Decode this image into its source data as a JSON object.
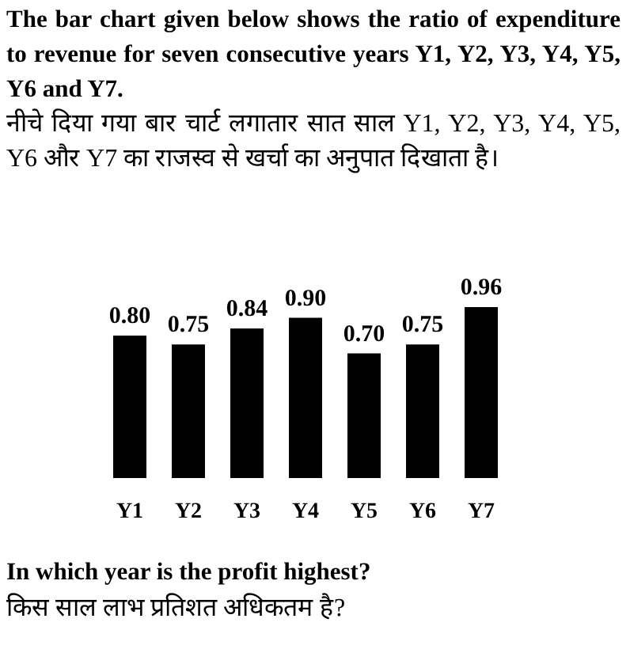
{
  "chart_data": {
    "type": "bar",
    "title": "The bar chart given below shows the ratio of expenditure to revenue for seven consecutive years Y1, Y2, Y3, Y4, Y5, Y6 and Y7.",
    "subtitle": "नीचे दिया गया बार चार्ट लगातार सात साल Y1, Y2, Y3, Y4, Y5, Y6 और Y7 का राजस्व से खर्चा का अनुपात दिखाता है।",
    "categories": [
      "Y1",
      "Y2",
      "Y3",
      "Y4",
      "Y5",
      "Y6",
      "Y7"
    ],
    "values": [
      0.8,
      0.75,
      0.84,
      0.9,
      0.7,
      0.75,
      0.96
    ],
    "value_labels": [
      "0.80",
      "0.75",
      "0.84",
      "0.90",
      "0.70",
      "0.75",
      "0.96"
    ],
    "color": "#000000",
    "annotations": [
      "In which year is the profit highest?",
      "किस साल लाभ प्रतिशत अधिकतम है?"
    ]
  }
}
